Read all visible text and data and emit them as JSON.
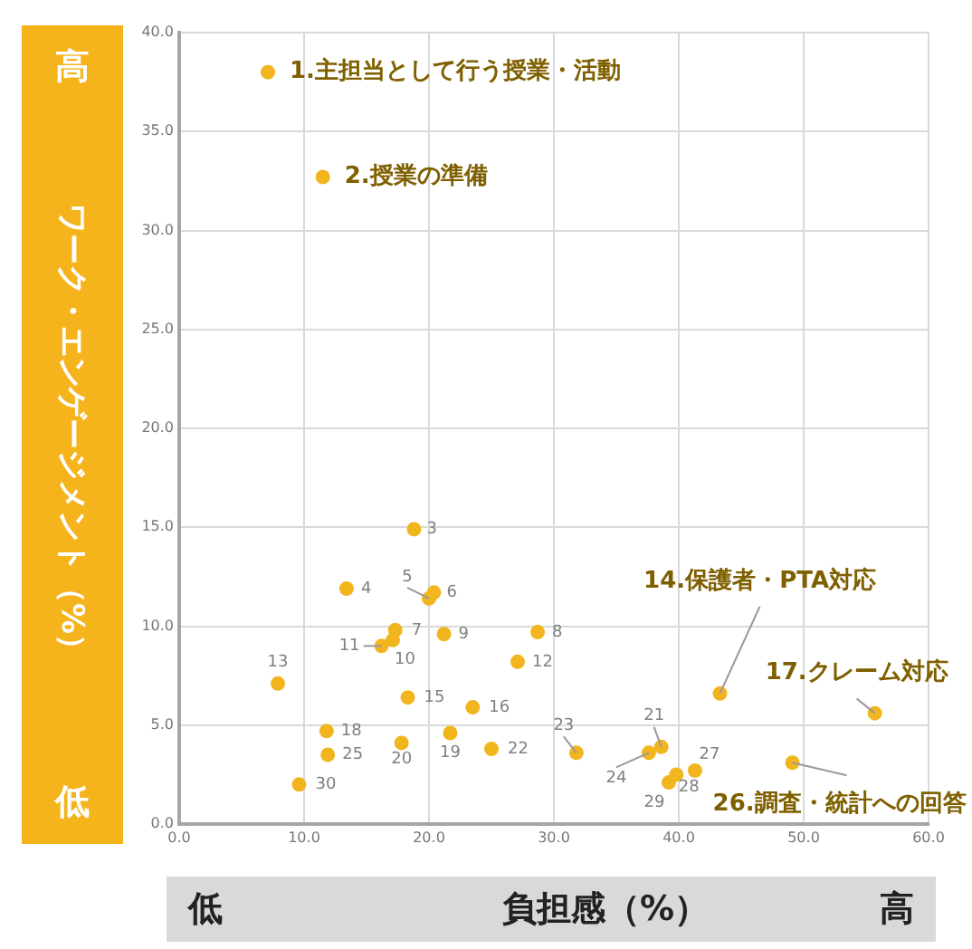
{
  "chart_data": {
    "type": "scatter",
    "xlabel": "負担感（%）",
    "ylabel": "ワーク・エンゲージメント（%）",
    "x": [
      7.1,
      11.5,
      18.8,
      13.4,
      20.0,
      20.4,
      17.3,
      28.7,
      21.2,
      17.1,
      16.2,
      27.1,
      7.9,
      43.3,
      18.3,
      23.5,
      55.7,
      11.8,
      21.7,
      17.8,
      38.6,
      25.0,
      31.8,
      37.6,
      11.9,
      49.1,
      41.3,
      39.8,
      39.2,
      9.6
    ],
    "series": [
      {
        "color": "#f2b51e",
        "values": [
          38.0,
          32.7,
          14.9,
          11.9,
          11.4,
          11.7,
          9.8,
          9.7,
          9.6,
          9.3,
          9.0,
          8.2,
          7.1,
          6.6,
          6.4,
          5.9,
          5.6,
          4.7,
          4.6,
          4.1,
          3.9,
          3.8,
          3.6,
          3.6,
          3.5,
          3.1,
          2.7,
          2.5,
          2.1,
          2.0
        ]
      }
    ],
    "marker": "circle",
    "grid": true,
    "xlim": [
      0,
      60
    ],
    "xticks": [
      {
        "value": 0,
        "label": "0.0"
      },
      {
        "value": 10,
        "label": "10.0"
      },
      {
        "value": 20,
        "label": "20.0"
      },
      {
        "value": 30,
        "label": "30.0"
      },
      {
        "value": 40,
        "label": "40.0"
      },
      {
        "value": 50,
        "label": "50.0"
      },
      {
        "value": 60,
        "label": "60.0"
      }
    ],
    "ylim": [
      0,
      40
    ],
    "yticks": [
      {
        "value": 0,
        "label": "0.0"
      },
      {
        "value": 5,
        "label": "5.0"
      },
      {
        "value": 10,
        "label": "10.0"
      },
      {
        "value": 15,
        "label": "15.0"
      },
      {
        "value": 20,
        "label": "20.0"
      },
      {
        "value": 25,
        "label": "25.0"
      },
      {
        "value": 30,
        "label": "30.0"
      },
      {
        "value": 35,
        "label": "35.0"
      },
      {
        "value": 40,
        "label": "40.0"
      }
    ],
    "annotations": [
      {
        "text": "1.主担当として行う授業・活動",
        "x": 7.1,
        "y": 38.0
      },
      {
        "text": "2.授業の準備",
        "x": 11.5,
        "y": 32.7
      },
      {
        "text": "3",
        "x": 18.8,
        "y": 14.9
      },
      {
        "text": "4",
        "x": 13.4,
        "y": 11.9
      },
      {
        "text": "5",
        "x": 20.0,
        "y": 11.4
      },
      {
        "text": "6",
        "x": 20.4,
        "y": 11.7
      },
      {
        "text": "7",
        "x": 17.3,
        "y": 9.8
      },
      {
        "text": "8",
        "x": 28.7,
        "y": 9.7
      },
      {
        "text": "9",
        "x": 21.2,
        "y": 9.6
      },
      {
        "text": "10",
        "x": 17.1,
        "y": 9.3
      },
      {
        "text": "11",
        "x": 16.2,
        "y": 9.0
      },
      {
        "text": "12",
        "x": 27.1,
        "y": 8.2
      },
      {
        "text": "13",
        "x": 7.9,
        "y": 7.1
      },
      {
        "text": "14.保護者・PTA対応",
        "x": 43.3,
        "y": 6.6
      },
      {
        "text": "15",
        "x": 18.3,
        "y": 6.4
      },
      {
        "text": "16",
        "x": 23.5,
        "y": 5.9
      },
      {
        "text": "17.クレーム対応",
        "x": 55.7,
        "y": 5.6
      },
      {
        "text": "18",
        "x": 11.8,
        "y": 4.7
      },
      {
        "text": "19",
        "x": 21.7,
        "y": 4.6
      },
      {
        "text": "20",
        "x": 17.8,
        "y": 4.1
      },
      {
        "text": "21",
        "x": 38.6,
        "y": 3.9
      },
      {
        "text": "22",
        "x": 25.0,
        "y": 3.8
      },
      {
        "text": "23",
        "x": 31.8,
        "y": 3.6
      },
      {
        "text": "24",
        "x": 37.6,
        "y": 3.6
      },
      {
        "text": "25",
        "x": 11.9,
        "y": 3.5
      },
      {
        "text": "26.調査・統計への回答",
        "x": 49.1,
        "y": 3.1
      },
      {
        "text": "27",
        "x": 41.3,
        "y": 2.7
      },
      {
        "text": "28",
        "x": 39.8,
        "y": 2.5
      },
      {
        "text": "29",
        "x": 39.2,
        "y": 2.1
      },
      {
        "text": "30",
        "x": 9.6,
        "y": 2.0
      },
      "高",
      "低",
      "低",
      "高"
    ]
  }
}
